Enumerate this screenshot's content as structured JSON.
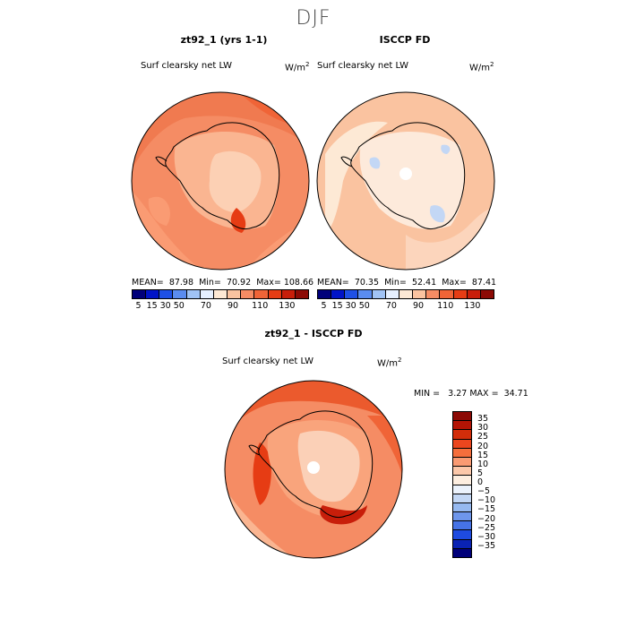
{
  "season": "DJF",
  "top_left": {
    "title": "zt92_1 (yrs 1-1)",
    "variable": "Surf clearsky net LW",
    "units": "W/m",
    "units_exp": "2",
    "stats": {
      "mean": "87.98",
      "min": "70.92",
      "max": "108.66"
    }
  },
  "top_right": {
    "title": "ISCCP FD",
    "variable": "Surf clearsky net LW",
    "units": "W/m",
    "units_exp": "2",
    "stats": {
      "mean": "70.35",
      "min": "52.41",
      "max": "87.41"
    }
  },
  "bottom": {
    "title": "zt92_1 - ISCCP FD",
    "variable": "Surf clearsky net LW",
    "units": "W/m",
    "units_exp": "2",
    "stats": {
      "min": "3.27",
      "max": "34.71"
    }
  },
  "labels": {
    "mean": "MEAN=",
    "min": "Min=",
    "max": "Max=",
    "min_upper": "MIN =",
    "max_upper": "MAX ="
  },
  "chart_data": [
    {
      "type": "heatmap",
      "title": "zt92_1 (yrs 1-1)",
      "variable": "Surf clearsky net LW",
      "projection": "south polar stereographic",
      "stats": {
        "mean": 87.98,
        "min": 70.92,
        "max": 108.66
      },
      "colorbar": {
        "ticks": [
          "5",
          "15",
          "30",
          "50",
          "70",
          "90",
          "110",
          "130"
        ],
        "colors": [
          "#00007a",
          "#0014c8",
          "#1e50e6",
          "#5a8cf0",
          "#a0c3f5",
          "#e6f0ff",
          "#fde9d5",
          "#fac3a0",
          "#f58c64",
          "#f06437",
          "#e63c14",
          "#c81e0a",
          "#8c0a05"
        ]
      }
    },
    {
      "type": "heatmap",
      "title": "ISCCP FD",
      "variable": "Surf clearsky net LW",
      "projection": "south polar stereographic",
      "stats": {
        "mean": 70.35,
        "min": 52.41,
        "max": 87.41
      },
      "colorbar": {
        "ticks": [
          "5",
          "15",
          "30",
          "50",
          "70",
          "90",
          "110",
          "130"
        ],
        "colors": [
          "#00007a",
          "#0014c8",
          "#1e50e6",
          "#5a8cf0",
          "#a0c3f5",
          "#e6f0ff",
          "#fde9d5",
          "#fac3a0",
          "#f58c64",
          "#f06437",
          "#e63c14",
          "#c81e0a",
          "#8c0a05"
        ]
      }
    },
    {
      "type": "heatmap",
      "title": "zt92_1 - ISCCP FD",
      "variable": "Surf clearsky net LW",
      "projection": "south polar stereographic",
      "stats": {
        "min": 3.27,
        "max": 34.71
      },
      "colorbar": {
        "ticks": [
          "35",
          "30",
          "25",
          "20",
          "15",
          "10",
          "5",
          "0",
          "−5",
          "−10",
          "−15",
          "−20",
          "−25",
          "−30",
          "−35"
        ],
        "colors": [
          "#8c0a05",
          "#b41405",
          "#d22d0a",
          "#eb461e",
          "#f56e3c",
          "#fa9b73",
          "#fcc8aa",
          "#fdeee0",
          "#ebf2fc",
          "#c3d7f5",
          "#96b9f0",
          "#6e96eb",
          "#4673e6",
          "#1e4be1",
          "#0a23b4",
          "#00007a"
        ]
      }
    }
  ]
}
